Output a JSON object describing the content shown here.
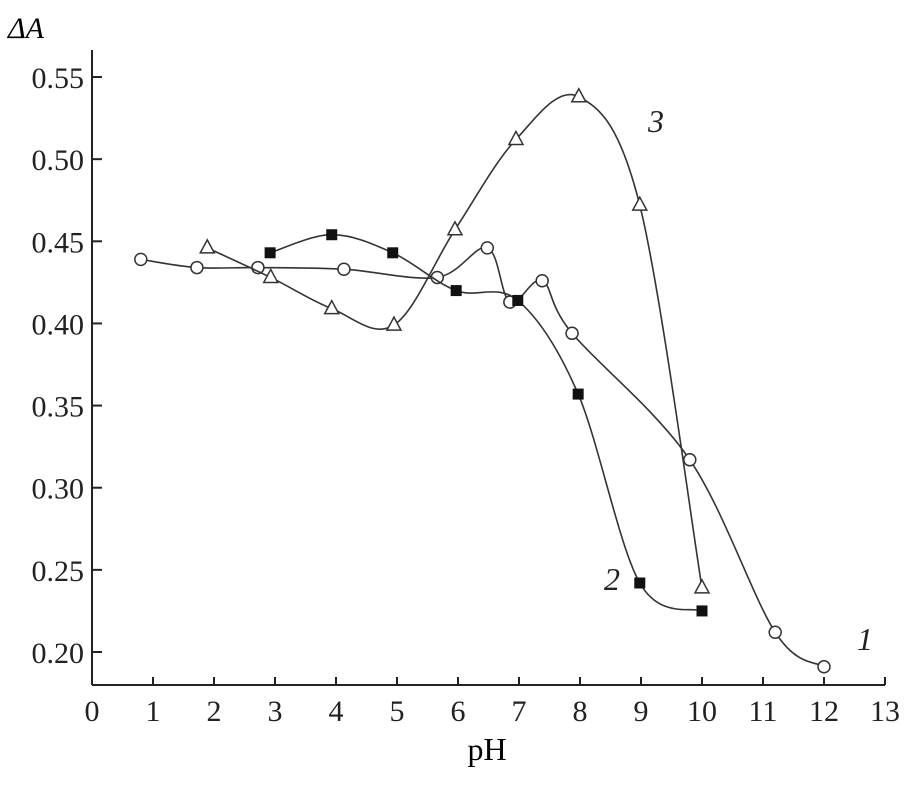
{
  "chart_data": {
    "type": "line",
    "title": "",
    "xlabel": "pH",
    "ylabel": "ΔA",
    "xlim": [
      0,
      13
    ],
    "ylim": [
      0.18,
      0.57
    ],
    "xticks": [
      "0",
      "1",
      "2",
      "3",
      "4",
      "5",
      "6",
      "7",
      "8",
      "9",
      "10",
      "11",
      "12",
      "13"
    ],
    "yticks": [
      "0.20",
      "0.25",
      "0.30",
      "0.35",
      "0.40",
      "0.45",
      "0.50",
      "0.55"
    ],
    "grid": false,
    "series": [
      {
        "name": "1",
        "marker": "open-circle",
        "x": [
          0.8,
          1.72,
          2.72,
          4.13,
          5.66,
          6.48,
          6.85,
          7.38,
          7.87,
          9.8,
          11.2,
          12.0
        ],
        "y": [
          0.439,
          0.434,
          0.434,
          0.433,
          0.428,
          0.446,
          0.413,
          0.426,
          0.394,
          0.317,
          0.212,
          0.191
        ]
      },
      {
        "name": "2",
        "marker": "filled-square",
        "x": [
          2.92,
          3.93,
          4.93,
          5.97,
          6.98,
          7.97,
          8.98,
          10.0
        ],
        "y": [
          0.443,
          0.454,
          0.443,
          0.42,
          0.414,
          0.357,
          0.242,
          0.225
        ]
      },
      {
        "name": "3",
        "marker": "open-triangle",
        "x": [
          1.89,
          2.93,
          3.93,
          4.95,
          5.95,
          6.95,
          7.98,
          8.98,
          10.0
        ],
        "y": [
          0.446,
          0.428,
          0.409,
          0.399,
          0.457,
          0.512,
          0.538,
          0.472,
          0.239
        ]
      }
    ]
  }
}
